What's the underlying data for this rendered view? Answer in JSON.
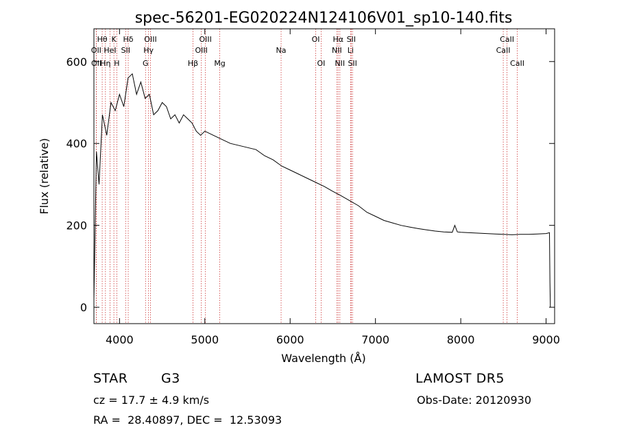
{
  "chart_data": {
    "type": "line",
    "title": "spec-56201-EG020224N124106V01_sp10-140.fits",
    "xlabel": "Wavelength (Å)",
    "ylabel": "Flux (relative)",
    "xlim": [
      3700,
      9100
    ],
    "ylim": [
      -40,
      680
    ],
    "x_ticks": [
      4000,
      5000,
      6000,
      7000,
      8000,
      9000
    ],
    "y_ticks": [
      0,
      200,
      400,
      600
    ],
    "grid": false,
    "series": [
      {
        "color": "#000000",
        "x": [
          3700,
          3730,
          3760,
          3800,
          3850,
          3900,
          3950,
          4000,
          4050,
          4100,
          4150,
          4200,
          4250,
          4300,
          4350,
          4400,
          4450,
          4500,
          4550,
          4600,
          4650,
          4700,
          4750,
          4800,
          4850,
          4900,
          4950,
          5000,
          5100,
          5200,
          5300,
          5400,
          5500,
          5600,
          5700,
          5800,
          5900,
          6000,
          6100,
          6200,
          6300,
          6400,
          6500,
          6600,
          6700,
          6800,
          6900,
          7000,
          7100,
          7200,
          7300,
          7400,
          7500,
          7600,
          7700,
          7800,
          7900,
          7930,
          7960,
          8000,
          8100,
          8200,
          8300,
          8400,
          8500,
          8600,
          8700,
          8800,
          8900,
          9000,
          9040,
          9045,
          9050
        ],
        "y": [
          20,
          380,
          300,
          470,
          420,
          500,
          480,
          520,
          490,
          560,
          570,
          520,
          550,
          510,
          520,
          470,
          480,
          500,
          490,
          460,
          470,
          450,
          470,
          460,
          450,
          430,
          420,
          430,
          420,
          410,
          400,
          395,
          390,
          385,
          370,
          360,
          345,
          335,
          325,
          315,
          305,
          295,
          283,
          272,
          260,
          248,
          232,
          222,
          212,
          206,
          200,
          196,
          192,
          189,
          186,
          184,
          183,
          200,
          184,
          183,
          182,
          181,
          180,
          179,
          178,
          177,
          178,
          178,
          179,
          180,
          182,
          60,
          0
        ]
      }
    ],
    "line_markers": [
      {
        "label": "Hθ",
        "x": 3797,
        "row": 1,
        "color": "#cc3333"
      },
      {
        "label": "OII",
        "x": 3727,
        "row": 2,
        "color": "#cc3333"
      },
      {
        "label": "OII",
        "x": 3729,
        "row": 3,
        "color": "#cc3333"
      },
      {
        "label": "Hη",
        "x": 3835,
        "row": 3,
        "color": "#cc3333"
      },
      {
        "label": "K",
        "x": 3934,
        "row": 1,
        "color": "#cc3333"
      },
      {
        "label": "HeI",
        "x": 3889,
        "row": 2,
        "color": "#cc3333"
      },
      {
        "label": "H",
        "x": 3968,
        "row": 3,
        "color": "#cc3333"
      },
      {
        "label": "Hδ",
        "x": 4102,
        "row": 1,
        "color": "#cc3333"
      },
      {
        "label": "SII",
        "x": 4072,
        "row": 2,
        "color": "#cc3333"
      },
      {
        "label": "OIII",
        "x": 4363,
        "row": 1,
        "color": "#cc3333"
      },
      {
        "label": "Hγ",
        "x": 4340,
        "row": 2,
        "color": "#cc3333"
      },
      {
        "label": "G",
        "x": 4305,
        "row": 3,
        "color": "#cc3333"
      },
      {
        "label": "Hβ",
        "x": 4861,
        "row": 3,
        "color": "#cc3333"
      },
      {
        "label": "OIII",
        "x": 5007,
        "row": 1,
        "color": "#cc3333"
      },
      {
        "label": "OIII",
        "x": 4959,
        "row": 2,
        "color": "#cc3333"
      },
      {
        "label": "Mg",
        "x": 5175,
        "row": 3,
        "color": "#cc3333"
      },
      {
        "label": "Na",
        "x": 5894,
        "row": 2,
        "color": "#cc3333"
      },
      {
        "label": "OI",
        "x": 6300,
        "row": 1,
        "color": "#cc3333"
      },
      {
        "label": "OI",
        "x": 6363,
        "row": 3,
        "color": "#cc3333"
      },
      {
        "label": "Hα",
        "x": 6563,
        "row": 1,
        "color": "#cc3333"
      },
      {
        "label": "NII",
        "x": 6548,
        "row": 2,
        "color": "#cc3333"
      },
      {
        "label": "NII",
        "x": 6583,
        "row": 3,
        "color": "#cc3333"
      },
      {
        "label": "SII",
        "x": 6716,
        "row": 1,
        "color": "#cc3333"
      },
      {
        "label": "Li",
        "x": 6708,
        "row": 2,
        "color": "#cc3333"
      },
      {
        "label": "SII",
        "x": 6731,
        "row": 3,
        "color": "#cc3333"
      },
      {
        "label": "CaII",
        "x": 8542,
        "row": 1,
        "color": "#cc3333"
      },
      {
        "label": "CaII",
        "x": 8498,
        "row": 2,
        "color": "#cc3333"
      },
      {
        "label": "CaII",
        "x": 8662,
        "row": 3,
        "color": "#cc3333"
      }
    ]
  },
  "info": {
    "class_label": "STAR",
    "subclass_label": "G3",
    "survey_label": "LAMOST DR5",
    "redshift_text": "cz = 17.7 ± 4.9 km/s",
    "obs_date_text": "Obs-Date: 20120930",
    "coords_text": "RA =  28.40897, DEC =  12.53093"
  }
}
